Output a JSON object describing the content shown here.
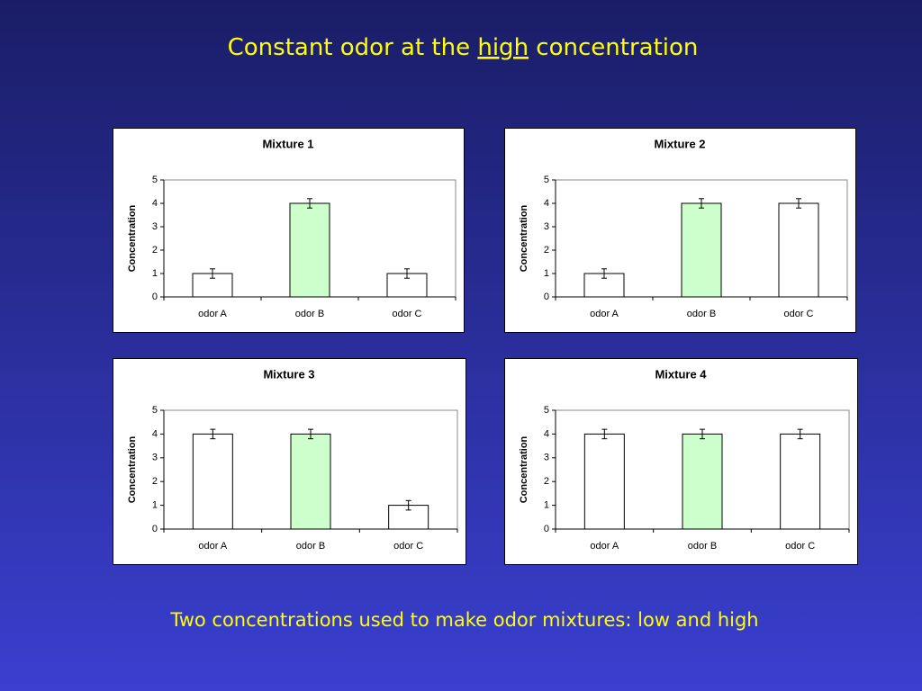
{
  "title": {
    "before": "Constant odor at the ",
    "emphasis": "high",
    "after": " concentration"
  },
  "caption": "Two concentrations used to make odor mixtures: low and high",
  "chart_data": [
    {
      "type": "bar",
      "title": "Mixture 1",
      "y_label": "Concentration",
      "categories": [
        "odor A",
        "odor B",
        "odor C"
      ],
      "values": [
        1,
        4,
        1
      ],
      "errors": [
        0.2,
        0.2,
        0.2
      ],
      "colors": [
        "#ffffff",
        "#ccffcc",
        "#ffffff"
      ],
      "ylim": [
        0,
        5
      ],
      "yticks": [
        0,
        1,
        2,
        3,
        4,
        5
      ]
    },
    {
      "type": "bar",
      "title": "Mixture 2",
      "y_label": "Concentration",
      "categories": [
        "odor A",
        "odor B",
        "odor C"
      ],
      "values": [
        1,
        4,
        4
      ],
      "errors": [
        0.2,
        0.2,
        0.2
      ],
      "colors": [
        "#ffffff",
        "#ccffcc",
        "#ffffff"
      ],
      "ylim": [
        0,
        5
      ],
      "yticks": [
        0,
        1,
        2,
        3,
        4,
        5
      ]
    },
    {
      "type": "bar",
      "title": "Mixture 3",
      "y_label": "Concentration",
      "categories": [
        "odor A",
        "odor B",
        "odor C"
      ],
      "values": [
        4,
        4,
        1
      ],
      "errors": [
        0.2,
        0.2,
        0.2
      ],
      "colors": [
        "#ffffff",
        "#ccffcc",
        "#ffffff"
      ],
      "ylim": [
        0,
        5
      ],
      "yticks": [
        0,
        1,
        2,
        3,
        4,
        5
      ]
    },
    {
      "type": "bar",
      "title": "Mixture 4",
      "y_label": "Concentration",
      "categories": [
        "odor A",
        "odor B",
        "odor C"
      ],
      "values": [
        4,
        4,
        4
      ],
      "errors": [
        0.2,
        0.2,
        0.2
      ],
      "colors": [
        "#ffffff",
        "#ccffcc",
        "#ffffff"
      ],
      "ylim": [
        0,
        5
      ],
      "yticks": [
        0,
        1,
        2,
        3,
        4,
        5
      ]
    }
  ]
}
